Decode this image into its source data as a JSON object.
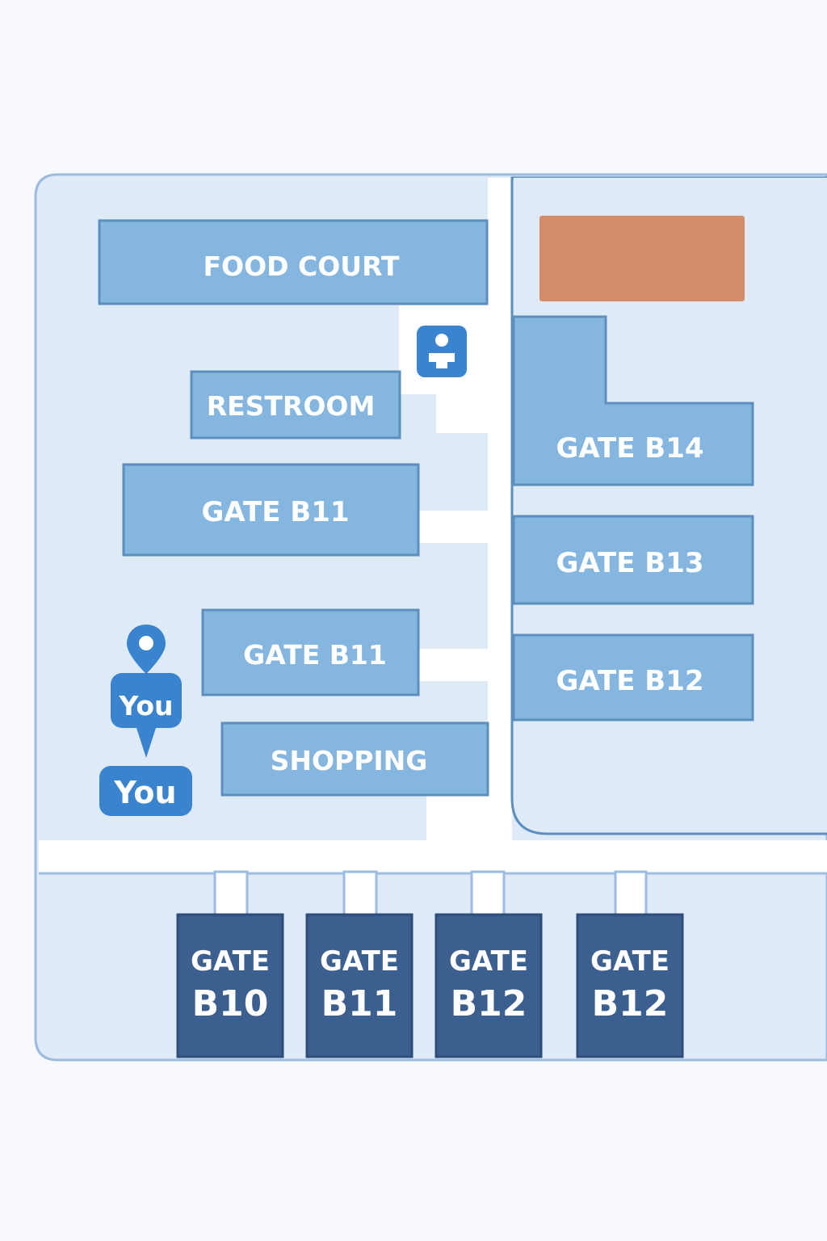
{
  "map": {
    "colors": {
      "background": "#f7f9fc",
      "floor": "#dfeaf7",
      "floor_border": "#9bbbe0",
      "corridor": "#ffffff",
      "room_fill": "#84b6df",
      "room_border": "#5d8fbe",
      "gate_dark": "#3b5f8e",
      "gate_dark_border": "#2e4e79",
      "highlight": "#d38b6a",
      "pin": "#3a84cf"
    },
    "rooms": {
      "food_court": "FOOD COURT",
      "restroom": "RESTROOM",
      "gate_b11_upper": "GATE B11",
      "gate_b11_lower": "GATE B11",
      "shopping": "SHOPPING",
      "gate_b14": "GATE B14",
      "gate_b13": "GATE B13",
      "gate_b12_side": "GATE B12"
    },
    "bottom_gates": [
      {
        "line1": "GATE",
        "line2": "B10"
      },
      {
        "line1": "GATE",
        "line2": "B11"
      },
      {
        "line1": "GATE",
        "line2": "B12"
      },
      {
        "line1": "GATE",
        "line2": "B12"
      }
    ],
    "markers": {
      "you_pin": "You",
      "you_badge": "You"
    },
    "icons": {
      "restroom_icon": "restroom-icon",
      "location_pin": "location-pin-icon"
    }
  }
}
